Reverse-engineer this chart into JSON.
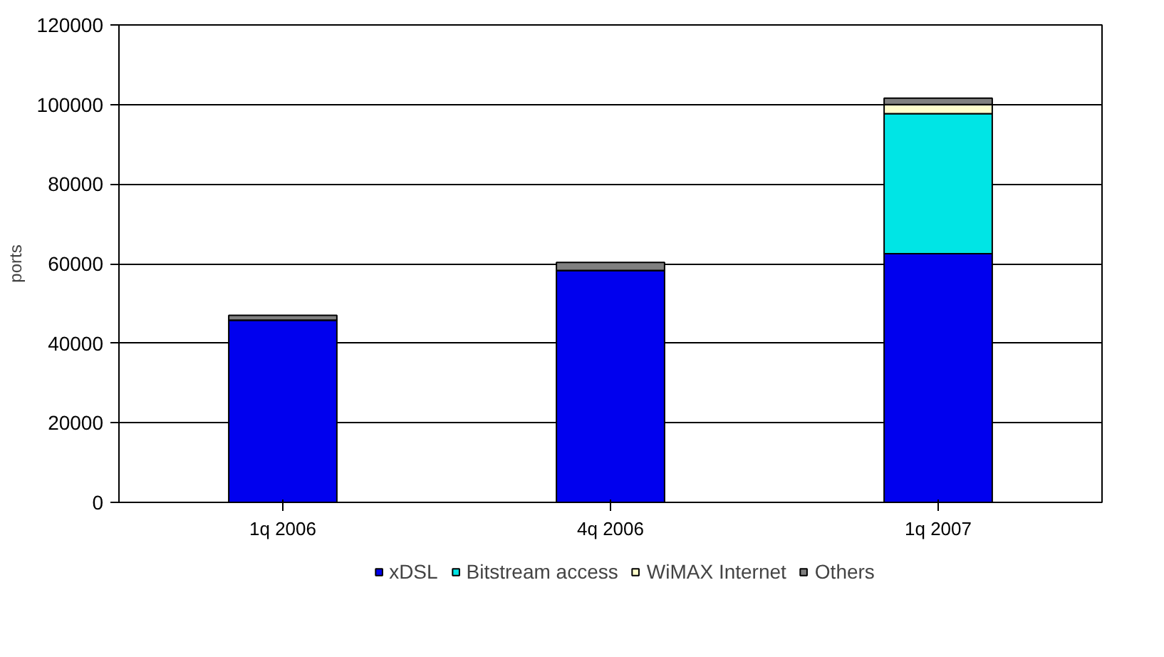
{
  "chart_data": {
    "type": "bar",
    "stacked": true,
    "ylabel": "ports",
    "categories": [
      "1q 2006",
      "4q 2006",
      "1q 2007"
    ],
    "series": [
      {
        "name": "xDSL",
        "color": "#0000ee",
        "values": [
          45800,
          58300,
          62500
        ]
      },
      {
        "name": "Bitstream access",
        "color": "#00e5e5",
        "values": [
          0,
          0,
          35200
        ]
      },
      {
        "name": "WiMAX Internet",
        "color": "#ffffcc",
        "values": [
          0,
          0,
          2300
        ]
      },
      {
        "name": "Others",
        "color": "#808080",
        "values": [
          1200,
          2000,
          1600
        ]
      }
    ],
    "ylim": [
      0,
      120000
    ],
    "yticks": [
      0,
      20000,
      40000,
      60000,
      80000,
      100000,
      120000
    ],
    "grid": "y",
    "legend": "bottom"
  }
}
